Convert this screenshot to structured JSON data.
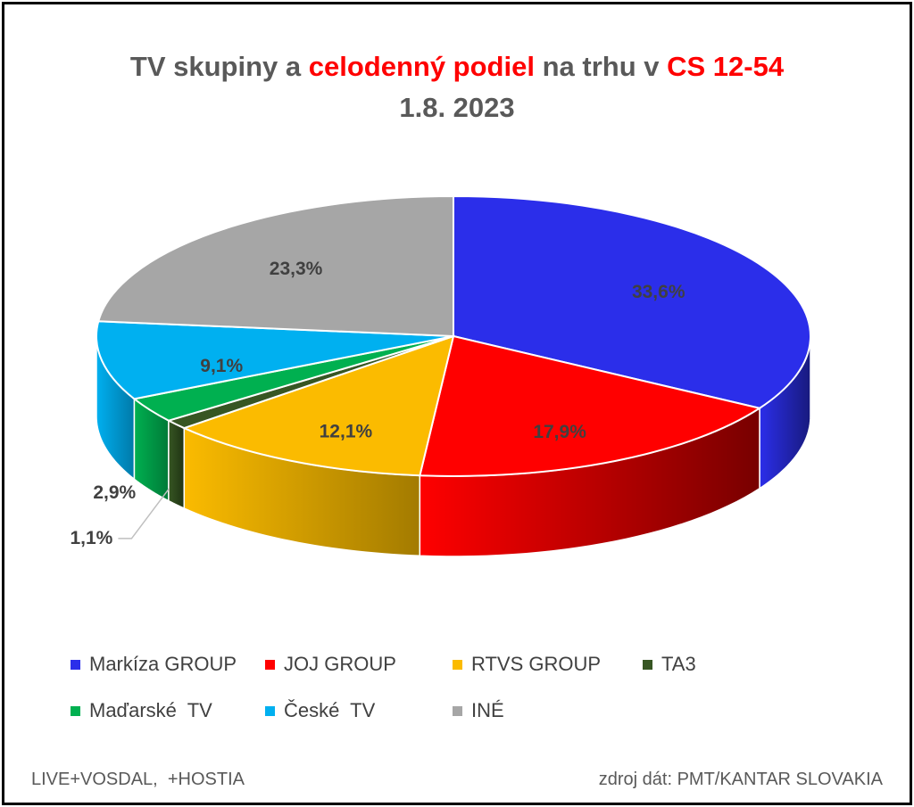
{
  "title": {
    "part1": "TV skupiny a ",
    "part2": "celodenný podiel",
    "part3": " na trhu v ",
    "part4": "CS 12-54",
    "date": "1.8. 2023"
  },
  "colors": {
    "title_text": "#595959",
    "title_highlight": "#ff0000",
    "label_text": "#404040"
  },
  "chart_data": {
    "type": "pie",
    "style": "3d",
    "categories": [
      "Markíza GROUP",
      "JOJ GROUP",
      "RTVS GROUP",
      "TA3",
      "Maďarské  TV",
      "České  TV",
      "INÉ"
    ],
    "values": [
      33.6,
      17.9,
      12.1,
      1.1,
      2.9,
      9.1,
      23.3
    ],
    "data_labels": [
      "33,6%",
      "17,9%",
      "12,1%",
      "1,1%",
      "2,9%",
      "9,1%",
      "23,3%"
    ],
    "colors": [
      "#2b2eea",
      "#ff0000",
      "#fbbb00",
      "#375623",
      "#00b050",
      "#00b0f0",
      "#a6a6a6"
    ],
    "side_colors": [
      "#181a7d",
      "#780000",
      "#a37b00",
      "#1f3313",
      "#007a38",
      "#0079a8",
      "#6e6e6e"
    ],
    "legend_position": "bottom",
    "start_angle_deg": 90,
    "direction": "clockwise"
  },
  "footer": {
    "left": "LIVE+VOSDAL,  +HOSTIA",
    "right": "zdroj dát: PMT/KANTAR SLOVAKIA"
  }
}
